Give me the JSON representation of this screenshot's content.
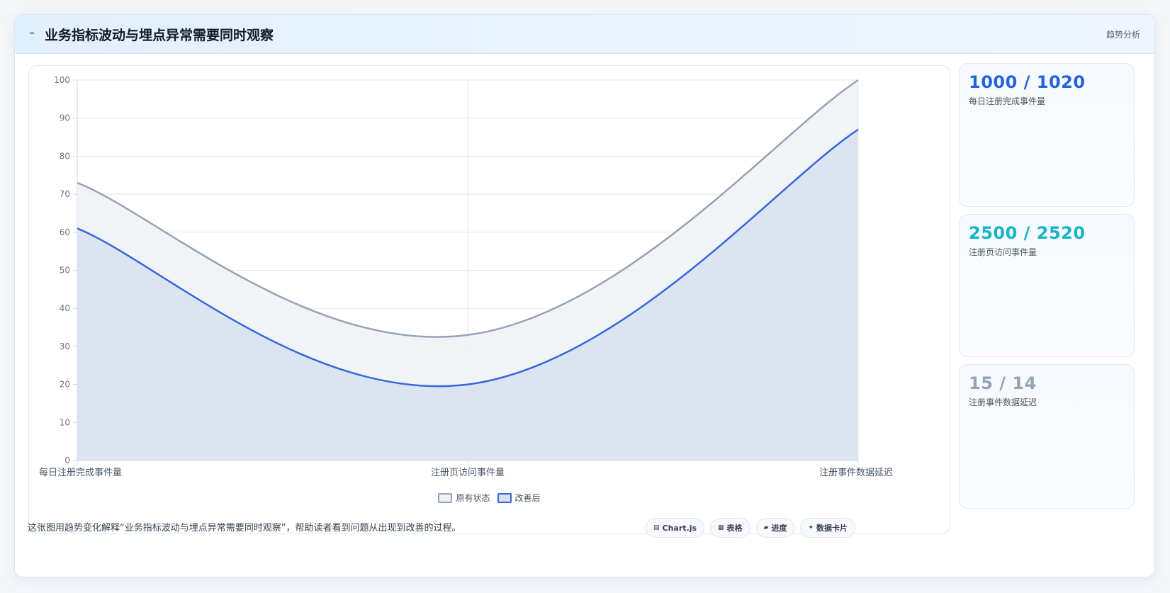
{
  "header": {
    "icon": "trend-line-icon",
    "title": "业务指标波动与埋点异常需要同时观察",
    "tag": "趋势分析"
  },
  "chart_data": {
    "type": "area",
    "categories": [
      "每日注册完成事件量",
      "注册页访问事件量",
      "注册事件数据延迟"
    ],
    "series": [
      {
        "name": "原有状态",
        "values": [
          73,
          33,
          100
        ],
        "color": "#94a3b8",
        "fill": "#eef1f5"
      },
      {
        "name": "改善后",
        "values": [
          61,
          20,
          87
        ],
        "color": "#3468dc",
        "fill": "#d8e1f0"
      }
    ],
    "ylim": [
      0,
      100
    ],
    "yticks": [
      0,
      10,
      20,
      30,
      40,
      50,
      60,
      70,
      80,
      90,
      100
    ],
    "grid": true,
    "legend": "bottom"
  },
  "side_cards": [
    {
      "value": "1000 / 1020",
      "label": "每日注册完成事件量",
      "color": "#2563d9"
    },
    {
      "value": "2500 / 2520",
      "label": "注册页访问事件量",
      "color": "#17b3c9"
    },
    {
      "value": "15 / 14",
      "label": "注册事件数据延迟",
      "color": "#94a3b8"
    }
  ],
  "footer": {
    "text": "这张图用趋势变化解释“业务指标波动与埋点异常需要同时观察”，帮助读者看到问题从出现到改善的过程。",
    "chips": [
      {
        "icon": "chart-icon",
        "glyph": "▤",
        "label": "Chart.js"
      },
      {
        "icon": "table-icon",
        "glyph": "▦",
        "label": "表格"
      },
      {
        "icon": "progress-icon",
        "glyph": "▰",
        "label": "进度"
      },
      {
        "icon": "sparkle-icon",
        "glyph": "✦",
        "label": "数据卡片"
      }
    ]
  }
}
